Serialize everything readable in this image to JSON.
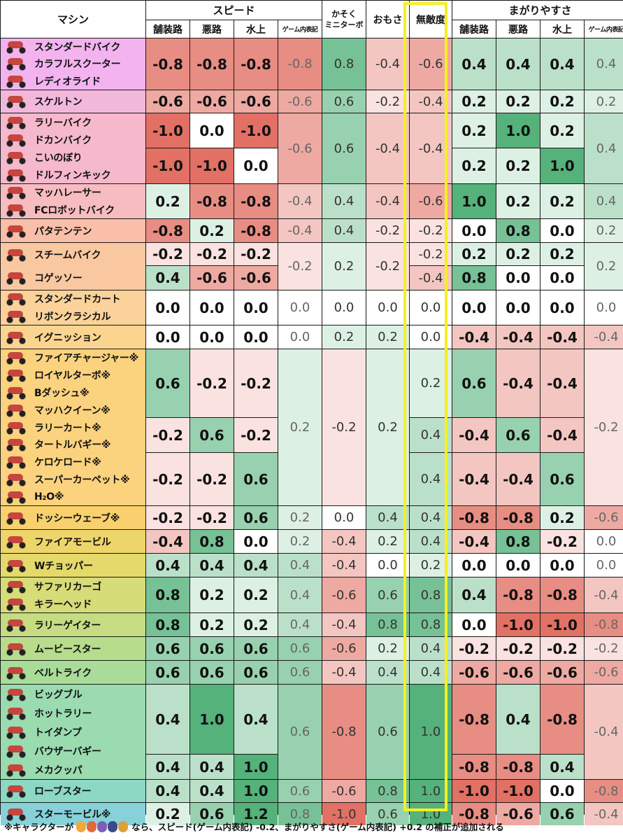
{
  "headers": {
    "machine": "マシン",
    "speed": "スピード",
    "accel_top": "かそく",
    "accel_bottom": "ミニターボ",
    "weight": "おもさ",
    "invincibility": "無敵度",
    "handling": "まがりやすさ",
    "paved": "舗装路",
    "rough": "悪路",
    "water": "水上",
    "game_display": "ゲーム内表記"
  },
  "machines": [
    "スタンダードバイク",
    "カラフルスクーター",
    "レディオライド",
    "スケルトン",
    "ラリーバイク",
    "ドカンバイク",
    "こいのぼり",
    "ドルフィンキック",
    "マッハレーサー",
    "FCロボットバイク",
    "パタテンテン",
    "スチームバイク",
    "コゲッソー",
    "スタンダードカート",
    "リボンクラシカル",
    "イグニッション",
    "ファイアチャージャー※",
    "ロイヤルターボ※",
    "Bダッシュ※",
    "マッハクイーン※",
    "ラリーカート※",
    "タートルバギー※",
    "ケロケロード※",
    "スーパーカーペット※",
    "H₂O※",
    "ドッシーウェーブ※",
    "ファイアモービル",
    "Wチョッパー",
    "サファリカーゴ",
    "キラーヘッド",
    "ラリーゲイター",
    "ムービースター",
    "ベルトライク",
    "ビッグブル",
    "ホットラリー",
    "トイダンプ",
    "バウザーバギー",
    "メカクッパ",
    "ローブスター",
    "スターモービル※"
  ],
  "values": {
    "r0": [
      "-0.8",
      "-0.8",
      "-0.8",
      "-0.8",
      "0.8",
      "-0.4",
      "-0.6",
      "0.4",
      "0.4",
      "0.4",
      "0.4"
    ],
    "r1": [
      "-0.6",
      "-0.6",
      "-0.6",
      "-0.6",
      "0.6",
      "-0.2",
      "-0.4",
      "0.2",
      "0.2",
      "0.2",
      "0.2"
    ],
    "r2a": [
      "-1.0",
      "0.0",
      "-1.0",
      "-0.6",
      "0.6",
      "-0.4",
      "-0.4",
      "0.2",
      "1.0",
      "0.2",
      "0.4"
    ],
    "r2b": [
      "-1.0",
      "-1.0",
      "0.0",
      "0.2",
      "0.2",
      "1.0"
    ],
    "r3": [
      "0.2",
      "-0.8",
      "-0.8",
      "-0.4",
      "0.4",
      "-0.4",
      "-0.6",
      "1.0",
      "0.2",
      "0.2",
      "0.4"
    ],
    "r4": [
      "-0.8",
      "0.2",
      "-0.8",
      "-0.4",
      "0.4",
      "-0.2",
      "-0.2",
      "0.0",
      "0.8",
      "0.0",
      "0.2"
    ],
    "r5a": [
      "-0.2",
      "-0.2",
      "-0.2",
      "-0.2",
      "0.2",
      "-0.2",
      "-0.2",
      "0.2",
      "0.2",
      "0.2",
      "0.2"
    ],
    "r5b": [
      "0.4",
      "-0.6",
      "-0.6",
      "-0.4",
      "0.8",
      "0.0",
      "0.0"
    ],
    "r6": [
      "0.0",
      "0.0",
      "0.0",
      "0.0",
      "0.0",
      "0.0",
      "0.0",
      "0.0",
      "0.0",
      "0.0",
      "0.0"
    ],
    "r7": [
      "0.0",
      "0.0",
      "0.0",
      "0.0",
      "0.2",
      "0.2",
      "0.0",
      "-0.4",
      "-0.4",
      "-0.4",
      "-0.4"
    ],
    "r8a": [
      "0.6",
      "-0.2",
      "-0.2",
      "0.2",
      "-0.2",
      "0.2",
      "0.2",
      "0.6",
      "-0.4",
      "-0.4",
      "-0.2"
    ],
    "r8b": [
      "-0.2",
      "0.6",
      "-0.2",
      "0.4",
      "-0.4",
      "0.6",
      "-0.4"
    ],
    "r8c": [
      "-0.2",
      "-0.2",
      "0.6",
      "0.4",
      "-0.4",
      "-0.4",
      "0.6"
    ],
    "r9": [
      "-0.2",
      "-0.2",
      "0.6",
      "0.2",
      "0.0",
      "0.4",
      "0.4",
      "-0.8",
      "-0.8",
      "0.2",
      "-0.6"
    ],
    "r10": [
      "-0.4",
      "0.8",
      "0.0",
      "0.2",
      "-0.4",
      "0.2",
      "0.4",
      "-0.4",
      "0.8",
      "-0.2",
      "0.0"
    ],
    "r11": [
      "0.4",
      "0.4",
      "0.4",
      "0.4",
      "-0.4",
      "0.0",
      "0.2",
      "0.0",
      "0.0",
      "0.0",
      "0.0"
    ],
    "r12": [
      "0.8",
      "0.2",
      "0.2",
      "0.4",
      "-0.6",
      "0.6",
      "0.8",
      "0.4",
      "-0.8",
      "-0.8",
      "-0.4"
    ],
    "r13": [
      "0.8",
      "0.2",
      "0.2",
      "0.4",
      "-0.4",
      "0.8",
      "0.8",
      "0.0",
      "-1.0",
      "-1.0",
      "-0.8"
    ],
    "r14": [
      "0.6",
      "0.6",
      "0.6",
      "0.6",
      "-0.6",
      "0.2",
      "0.4",
      "-0.2",
      "-0.2",
      "-0.2",
      "-0.2"
    ],
    "r15": [
      "0.6",
      "0.6",
      "0.6",
      "0.6",
      "-0.4",
      "0.4",
      "0.4",
      "-0.6",
      "-0.6",
      "-0.6",
      "-0.6"
    ],
    "r16a": [
      "0.4",
      "1.0",
      "0.4",
      "0.6",
      "-0.8",
      "0.6",
      "1.0",
      "-0.8",
      "0.4",
      "-0.8",
      "-0.4"
    ],
    "r16b": [
      "0.4",
      "0.4",
      "1.0",
      "-0.8",
      "-0.8",
      "0.4"
    ],
    "r17": [
      "0.4",
      "0.4",
      "1.0",
      "0.6",
      "-0.6",
      "0.8",
      "1.0",
      "-1.0",
      "-1.0",
      "0.0",
      "-0.8"
    ],
    "r18": [
      "0.2",
      "0.6",
      "1.2",
      "0.8",
      "-1.0",
      "0.6",
      "1.0",
      "-0.8",
      "-0.6",
      "0.6",
      "-0.4"
    ]
  },
  "footnote": {
    "before": "※キャラクターが",
    "after": "なら、スピード(ゲーム内表記) -0.2、まがりやすさ(ゲーム内表記) +0.2 の補正が追加される"
  },
  "colors": {
    "highlight": "#f5f021",
    "pos_strong": "#5ab57e",
    "neg_strong": "#e07b6e"
  }
}
